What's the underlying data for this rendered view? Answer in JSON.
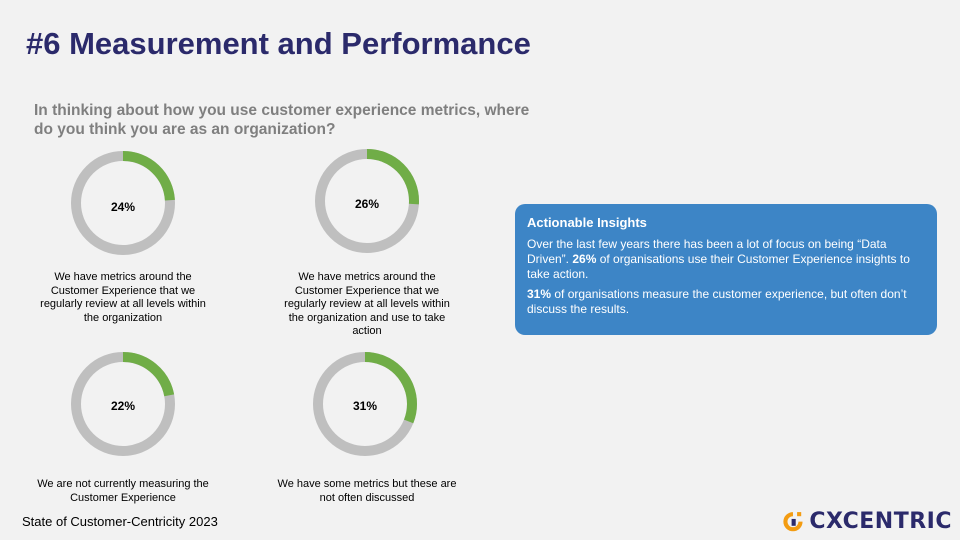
{
  "title": "#6 Measurement and Performance",
  "question": "In thinking about how you use customer experience metrics, where do you think you are as an organization?",
  "colors": {
    "ring_bg": "#bfbfbf",
    "ring_fg": "#70ad47",
    "title": "#2b2a6b",
    "card": "#3d85c6",
    "logo_orange": "#f39c12"
  },
  "chart_data": {
    "type": "pie",
    "categories": [
      "We have metrics around the Customer Experience that we regularly review at all levels within the organization",
      "We have metrics around the Customer Experience that we regularly review at all levels within the organization and use to take action",
      "We are not currently measuring the Customer Experience",
      "We have some metrics but these are not often discussed"
    ],
    "values": [
      24,
      26,
      22,
      31
    ],
    "labels": [
      "24%",
      "26%",
      "22%",
      "31%"
    ]
  },
  "insights": {
    "heading": "Actionable Insights",
    "p1_pre": "Over the last few years there has been a lot of focus on being “Data Driven”. ",
    "p1_bold": "26%",
    "p1_post": " of organisations use their Customer Experience insights to take action.",
    "p2_bold": "31%",
    "p2_post": " of organisations measure the customer experience, but often don’t discuss the results."
  },
  "footer": "State of Customer-Centricity 2023",
  "logo": {
    "text": "CXCENTRIC",
    "icon": "cx-logo-icon"
  }
}
